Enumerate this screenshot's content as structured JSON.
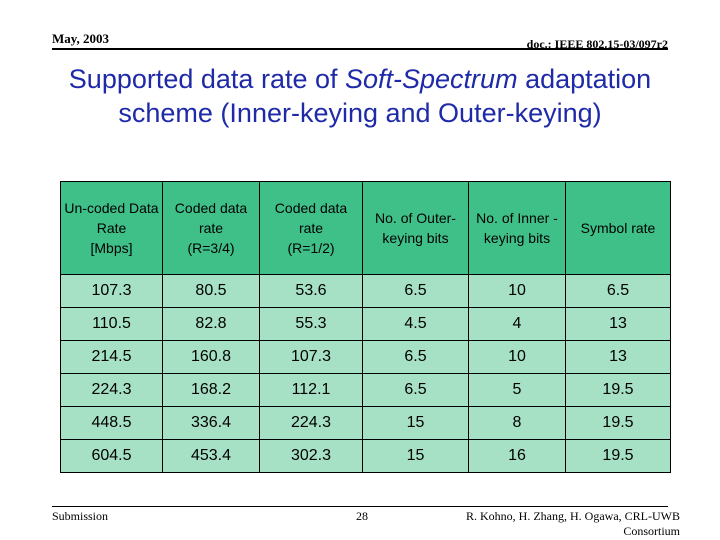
{
  "header": {
    "date": "May, 2003",
    "doc_id": "doc.: IEEE 802.15-03/097r2"
  },
  "title": {
    "part1": "Supported data rate of ",
    "emphasis": "Soft-Spectrum",
    "part2": " adaptation scheme (Inner-keying and Outer-keying)"
  },
  "table": {
    "headers": [
      {
        "line1": "Un-coded Data Rate",
        "line2": "[Mbps]"
      },
      {
        "line1": "Coded data rate",
        "line2": "(R=3/4)"
      },
      {
        "line1": "Coded data rate",
        "line2": "(R=1/2)"
      },
      {
        "line1": "No. of Outer-keying bits",
        "line2": ""
      },
      {
        "line1": "No. of Inner -keying bits",
        "line2": ""
      },
      {
        "line1": "Symbol rate",
        "line2": ""
      }
    ],
    "rows": [
      [
        "107.3",
        "80.5",
        "53.6",
        "6.5",
        "10",
        "6.5"
      ],
      [
        "110.5",
        "82.8",
        "55.3",
        "4.5",
        "4",
        "13"
      ],
      [
        "214.5",
        "160.8",
        "107.3",
        "6.5",
        "10",
        "13"
      ],
      [
        "224.3",
        "168.2",
        "112.1",
        "6.5",
        "5",
        "19.5"
      ],
      [
        "448.5",
        "336.4",
        "224.3",
        "15",
        "8",
        "19.5"
      ],
      [
        "604.5",
        "453.4",
        "302.3",
        "15",
        "16",
        "19.5"
      ]
    ]
  },
  "footer": {
    "left": "Submission",
    "page": "28",
    "right": "R. Kohno, H. Zhang, H. Ogawa, CRL-UWB Consortium"
  },
  "colors": {
    "title": "#1e2aa8",
    "header_fill": "#3fc089",
    "cell_fill": "#a6e1c6"
  }
}
